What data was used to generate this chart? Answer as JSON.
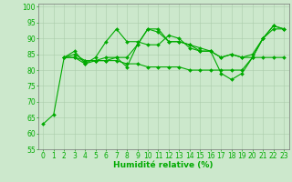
{
  "line1_x": [
    0,
    1,
    2,
    3,
    4,
    5,
    6,
    7,
    8,
    9,
    10,
    11,
    12,
    13,
    14,
    15,
    16,
    17,
    18,
    19,
    20,
    21,
    22,
    23
  ],
  "line1_y": [
    63,
    66,
    84,
    84,
    82,
    84,
    89,
    93,
    89,
    89,
    88,
    88,
    91,
    90,
    87,
    86,
    86,
    79,
    77,
    79,
    84,
    90,
    93,
    93
  ],
  "line2_x": [
    2,
    3,
    4,
    5,
    6,
    7,
    8,
    9,
    10,
    11,
    12,
    13,
    14,
    15,
    16,
    17,
    18,
    19,
    20,
    21,
    22,
    23
  ],
  "line2_y": [
    84,
    86,
    82,
    83,
    84,
    84,
    81,
    88,
    93,
    92,
    89,
    89,
    88,
    87,
    86,
    84,
    85,
    84,
    84,
    90,
    94,
    93
  ],
  "line3_x": [
    2,
    3,
    4,
    5,
    6,
    7,
    8,
    9,
    10,
    11,
    12,
    13,
    14,
    15,
    16,
    17,
    18,
    19,
    20,
    21,
    22,
    23
  ],
  "line3_y": [
    84,
    85,
    83,
    83,
    83,
    83,
    82,
    82,
    81,
    81,
    81,
    81,
    80,
    80,
    80,
    80,
    80,
    80,
    84,
    84,
    84,
    84
  ],
  "line4_x": [
    2,
    3,
    4,
    5,
    6,
    7,
    8,
    9,
    10,
    11,
    12,
    13,
    14,
    15,
    16,
    17,
    18,
    19,
    20,
    21,
    22,
    23
  ],
  "line4_y": [
    84,
    84,
    83,
    83,
    83,
    84,
    84,
    88,
    93,
    93,
    89,
    89,
    88,
    86,
    86,
    84,
    85,
    84,
    85,
    90,
    94,
    93
  ],
  "xlim": [
    -0.5,
    23.5
  ],
  "ylim": [
    55,
    101
  ],
  "yticks": [
    55,
    60,
    65,
    70,
    75,
    80,
    85,
    90,
    95,
    100
  ],
  "xticks": [
    0,
    1,
    2,
    3,
    4,
    5,
    6,
    7,
    8,
    9,
    10,
    11,
    12,
    13,
    14,
    15,
    16,
    17,
    18,
    19,
    20,
    21,
    22,
    23
  ],
  "xlabel": "Humidité relative (%)",
  "background_color": "#cce8cc",
  "grid_color": "#aaccaa",
  "line_color": "#00aa00",
  "xlabel_fontsize": 6.5,
  "tick_fontsize": 5.5,
  "marker_size": 2.0,
  "line_width": 0.8
}
